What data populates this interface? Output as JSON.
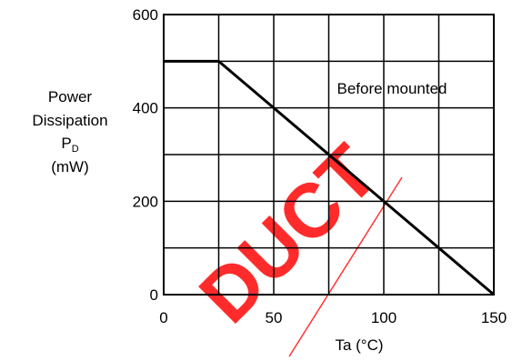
{
  "chart_data": {
    "type": "line",
    "title": "",
    "ylabel_lines": [
      "Power",
      "Dissipation"
    ],
    "ylabel_symbol": "P",
    "ylabel_symbol_sub": "D",
    "ylabel_unit": "(mW)",
    "xlabel": "Ta (°C)",
    "xlim": [
      0,
      150
    ],
    "ylim": [
      0,
      600
    ],
    "x_ticks": [
      "0",
      "50",
      "100",
      "150"
    ],
    "y_ticks": [
      "0",
      "200",
      "400",
      "600"
    ],
    "grid": true,
    "series": [
      {
        "x": [
          0,
          25,
          150
        ],
        "y": [
          500,
          500,
          0
        ]
      }
    ],
    "annotation": "Before mounted",
    "watermark": {
      "text": "DUCT",
      "color": "#ff2020"
    }
  }
}
